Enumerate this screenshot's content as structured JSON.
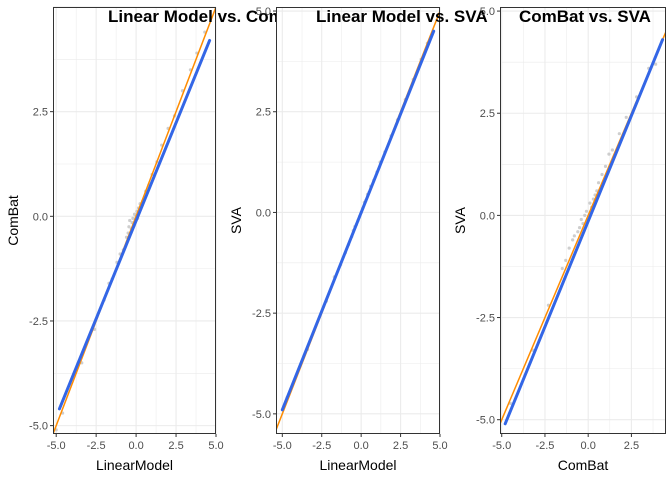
{
  "chart_data": [
    {
      "type": "scatter",
      "title": "Linear Model vs. ComBat",
      "xlabel": "LinearModel",
      "ylabel": "ComBat",
      "xlim": [
        -5.2,
        5.0
      ],
      "ylim": [
        -5.2,
        5.0
      ],
      "xticks": [
        "-5.0",
        "-2.5",
        "0.0",
        "2.5",
        "5.0"
      ],
      "yticks": [
        "-5.0",
        "-2.5",
        "0.0",
        "2.5"
      ],
      "grid": true,
      "series": [
        {
          "kind": "points",
          "color": "#bdbdbd",
          "points": [
            [
              -5.0,
              -5.1
            ],
            [
              -4.6,
              -4.7
            ],
            [
              -3.4,
              -3.5
            ],
            [
              -2.6,
              -2.7
            ],
            [
              -2.0,
              -2.0
            ],
            [
              -1.7,
              -1.6
            ],
            [
              -1.5,
              -1.5
            ],
            [
              -1.2,
              -1.1
            ],
            [
              -1.0,
              -0.9
            ],
            [
              -0.8,
              -0.8
            ],
            [
              -0.6,
              -0.5
            ],
            [
              -0.5,
              -0.4
            ],
            [
              -0.45,
              -0.25
            ],
            [
              -0.4,
              -0.1
            ],
            [
              -0.3,
              -0.3
            ],
            [
              -0.25,
              -0.15
            ],
            [
              -0.2,
              -0.05
            ],
            [
              -0.15,
              -0.2
            ],
            [
              -0.1,
              0.05
            ],
            [
              -0.05,
              -0.1
            ],
            [
              0.0,
              0.0
            ],
            [
              0.05,
              0.12
            ],
            [
              0.1,
              -0.05
            ],
            [
              0.15,
              0.2
            ],
            [
              0.2,
              0.1
            ],
            [
              0.25,
              0.3
            ],
            [
              0.3,
              0.25
            ],
            [
              0.4,
              0.35
            ],
            [
              0.5,
              0.4
            ],
            [
              0.6,
              0.6
            ],
            [
              0.8,
              0.75
            ],
            [
              1.0,
              1.0
            ],
            [
              1.3,
              1.3
            ],
            [
              1.6,
              1.7
            ],
            [
              2.0,
              2.1
            ],
            [
              2.4,
              2.4
            ],
            [
              2.9,
              3.0
            ],
            [
              3.4,
              3.5
            ],
            [
              3.8,
              3.9
            ],
            [
              4.3,
              4.4
            ]
          ]
        },
        {
          "kind": "fit",
          "name": "",
          "color": "#3366e6",
          "x": [
            -4.8,
            4.6
          ],
          "y": [
            -4.6,
            4.2
          ]
        },
        {
          "kind": "identity",
          "name": "",
          "color": "#ff8c00",
          "x": [
            -5.2,
            5.0
          ],
          "y": [
            -5.2,
            5.0
          ]
        }
      ]
    },
    {
      "type": "scatter",
      "title": "Linear Model vs. SVA",
      "xlabel": "LinearModel",
      "ylabel": "SVA",
      "xlim": [
        -5.4,
        5.0
      ],
      "ylim": [
        -5.5,
        5.1
      ],
      "xticks": [
        "-5.0",
        "-2.5",
        "0.0",
        "2.5",
        "5.0"
      ],
      "yticks": [
        "-5.0",
        "-2.5",
        "0.0",
        "2.5",
        "5.0"
      ],
      "grid": true,
      "series": [
        {
          "kind": "points",
          "color": "#bdbdbd",
          "points": [
            [
              -4.7,
              -4.6
            ],
            [
              -3.4,
              -3.4
            ],
            [
              -2.2,
              -2.2
            ],
            [
              -1.7,
              -1.6
            ],
            [
              -1.3,
              -1.3
            ],
            [
              -1.0,
              -1.0
            ],
            [
              -0.8,
              -0.8
            ],
            [
              -0.6,
              -0.6
            ],
            [
              -0.5,
              -0.45
            ],
            [
              -0.4,
              -0.35
            ],
            [
              -0.3,
              -0.3
            ],
            [
              -0.2,
              -0.2
            ],
            [
              -0.1,
              -0.1
            ],
            [
              0.0,
              0.0
            ],
            [
              0.1,
              0.1
            ],
            [
              0.2,
              0.25
            ],
            [
              0.3,
              0.3
            ],
            [
              0.4,
              0.45
            ],
            [
              0.5,
              0.5
            ],
            [
              0.6,
              0.65
            ],
            [
              0.8,
              0.8
            ],
            [
              1.0,
              1.0
            ],
            [
              1.2,
              1.25
            ],
            [
              1.5,
              1.5
            ],
            [
              1.9,
              1.9
            ],
            [
              2.3,
              2.3
            ],
            [
              2.8,
              2.8
            ],
            [
              3.3,
              3.3
            ],
            [
              3.8,
              3.8
            ],
            [
              4.2,
              4.2
            ]
          ]
        },
        {
          "kind": "fit",
          "name": "",
          "color": "#3366e6",
          "x": [
            -5.0,
            4.6
          ],
          "y": [
            -4.9,
            4.5
          ]
        },
        {
          "kind": "identity",
          "name": "",
          "color": "#ff8c00",
          "x": [
            -5.4,
            5.0
          ],
          "y": [
            -5.4,
            5.0
          ]
        }
      ]
    },
    {
      "type": "scatter",
      "title": "ComBat vs. SVA",
      "xlabel": "ComBat",
      "ylabel": "SVA",
      "xlim": [
        -5.1,
        4.5
      ],
      "ylim": [
        -5.35,
        5.1
      ],
      "xticks": [
        "-5.0",
        "-2.5",
        "0.0",
        "2.5"
      ],
      "yticks": [
        "-5.0",
        "-2.5",
        "0.0",
        "2.5",
        "5.0"
      ],
      "grid": true,
      "series": [
        {
          "kind": "points",
          "color": "#bdbdbd",
          "points": [
            [
              -4.5,
              -4.6
            ],
            [
              -3.2,
              -3.3
            ],
            [
              -2.3,
              -2.2
            ],
            [
              -1.5,
              -1.3
            ],
            [
              -1.3,
              -1.1
            ],
            [
              -1.1,
              -0.8
            ],
            [
              -0.9,
              -0.6
            ],
            [
              -0.8,
              -0.5
            ],
            [
              -0.6,
              -0.4
            ],
            [
              -0.5,
              -0.3
            ],
            [
              -0.4,
              -0.1
            ],
            [
              -0.3,
              -0.2
            ],
            [
              -0.2,
              0.0
            ],
            [
              -0.1,
              0.1
            ],
            [
              0.0,
              -0.1
            ],
            [
              0.1,
              0.3
            ],
            [
              0.2,
              0.2
            ],
            [
              0.3,
              0.4
            ],
            [
              0.4,
              0.5
            ],
            [
              0.5,
              0.6
            ],
            [
              0.6,
              0.8
            ],
            [
              0.8,
              1.0
            ],
            [
              1.0,
              1.2
            ],
            [
              1.2,
              1.5
            ],
            [
              1.4,
              1.6
            ],
            [
              1.8,
              2.0
            ],
            [
              2.2,
              2.4
            ],
            [
              2.8,
              2.9
            ],
            [
              3.5,
              3.6
            ],
            [
              3.9,
              3.7
            ]
          ]
        },
        {
          "kind": "fit",
          "name": "",
          "color": "#3366e6",
          "x": [
            -4.8,
            4.3
          ],
          "y": [
            -5.1,
            4.3
          ]
        },
        {
          "kind": "identity",
          "name": "",
          "color": "#ff8c00",
          "x": [
            -5.1,
            4.5
          ],
          "y": [
            -5.1,
            4.5
          ]
        }
      ]
    }
  ]
}
